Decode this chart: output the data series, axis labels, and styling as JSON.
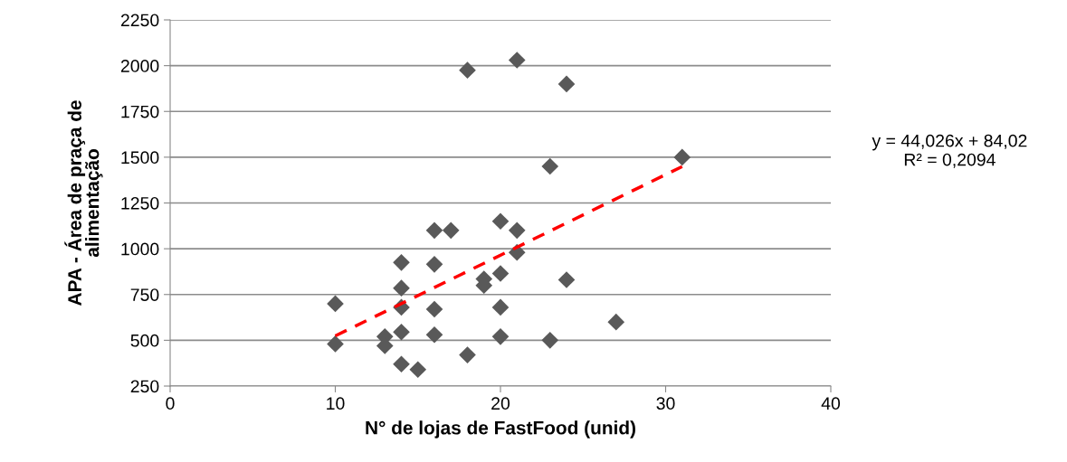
{
  "chart_data": {
    "type": "scatter",
    "xlabel": "N° de lojas de FastFood (unid)",
    "ylabel": "APA - Área de praça de\nalimentação",
    "xlim": [
      0,
      40
    ],
    "xticks": [
      0,
      10,
      20,
      30,
      40
    ],
    "ylim": [
      250,
      2250
    ],
    "yticks": [
      250,
      500,
      750,
      1000,
      1250,
      1500,
      1750,
      2000,
      2250
    ],
    "grid": "y",
    "legend": false,
    "series": [
      {
        "color": "#595959",
        "marker": "diamond",
        "x": [
          10,
          10,
          13,
          13,
          14,
          14,
          14,
          14,
          14,
          15,
          16,
          16,
          16,
          16,
          17,
          18,
          18,
          19,
          19,
          20,
          20,
          20,
          20,
          21,
          21,
          21,
          23,
          23,
          24,
          24,
          27,
          31
        ],
        "values": [
          700,
          480,
          520,
          470,
          925,
          785,
          680,
          545,
          370,
          340,
          1100,
          915,
          670,
          530,
          1100,
          1975,
          420,
          835,
          800,
          1150,
          865,
          680,
          520,
          2030,
          1100,
          980,
          1450,
          500,
          1900,
          830,
          600,
          1500
        ]
      },
      {
        "type": "line",
        "color": "#ff0000",
        "line_style": "dashed",
        "marker": "none",
        "x": [
          10,
          31
        ],
        "values": [
          524,
          1449
        ]
      }
    ],
    "annotations": [
      "y = 44,026x + 84,02\nR² = 0,2094"
    ]
  }
}
